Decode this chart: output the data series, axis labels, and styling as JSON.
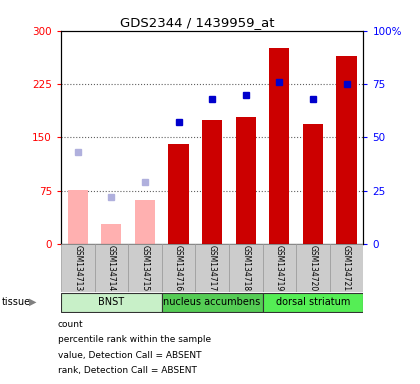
{
  "title": "GDS2344 / 1439959_at",
  "samples": [
    "GSM134713",
    "GSM134714",
    "GSM134715",
    "GSM134716",
    "GSM134717",
    "GSM134718",
    "GSM134719",
    "GSM134720",
    "GSM134721"
  ],
  "bar_values": [
    null,
    null,
    null,
    140,
    175,
    178,
    275,
    168,
    265
  ],
  "bar_absent_values": [
    76,
    28,
    62,
    null,
    null,
    null,
    null,
    null,
    null
  ],
  "rank_present": [
    null,
    null,
    null,
    57,
    68,
    70,
    76,
    68,
    75
  ],
  "rank_absent": [
    43,
    22,
    29,
    null,
    null,
    null,
    null,
    null,
    null
  ],
  "ylim_left": [
    0,
    300
  ],
  "ylim_right": [
    0,
    100
  ],
  "yticks_left": [
    0,
    75,
    150,
    225,
    300
  ],
  "yticks_right": [
    0,
    25,
    50,
    75,
    100
  ],
  "bar_color_present": "#cc0000",
  "bar_color_absent": "#ffb0b0",
  "rank_color_present": "#0000cc",
  "rank_color_absent": "#b0b0dd",
  "grid_color": "#808080",
  "sample_bg": "#cccccc",
  "bnst_color": "#c8f0c8",
  "nacc_color": "#55cc55",
  "dstr_color": "#55ee55",
  "tissues": [
    {
      "label": "BNST",
      "start": 0,
      "end": 3
    },
    {
      "label": "nucleus accumbens",
      "start": 3,
      "end": 6
    },
    {
      "label": "dorsal striatum",
      "start": 6,
      "end": 9
    }
  ]
}
